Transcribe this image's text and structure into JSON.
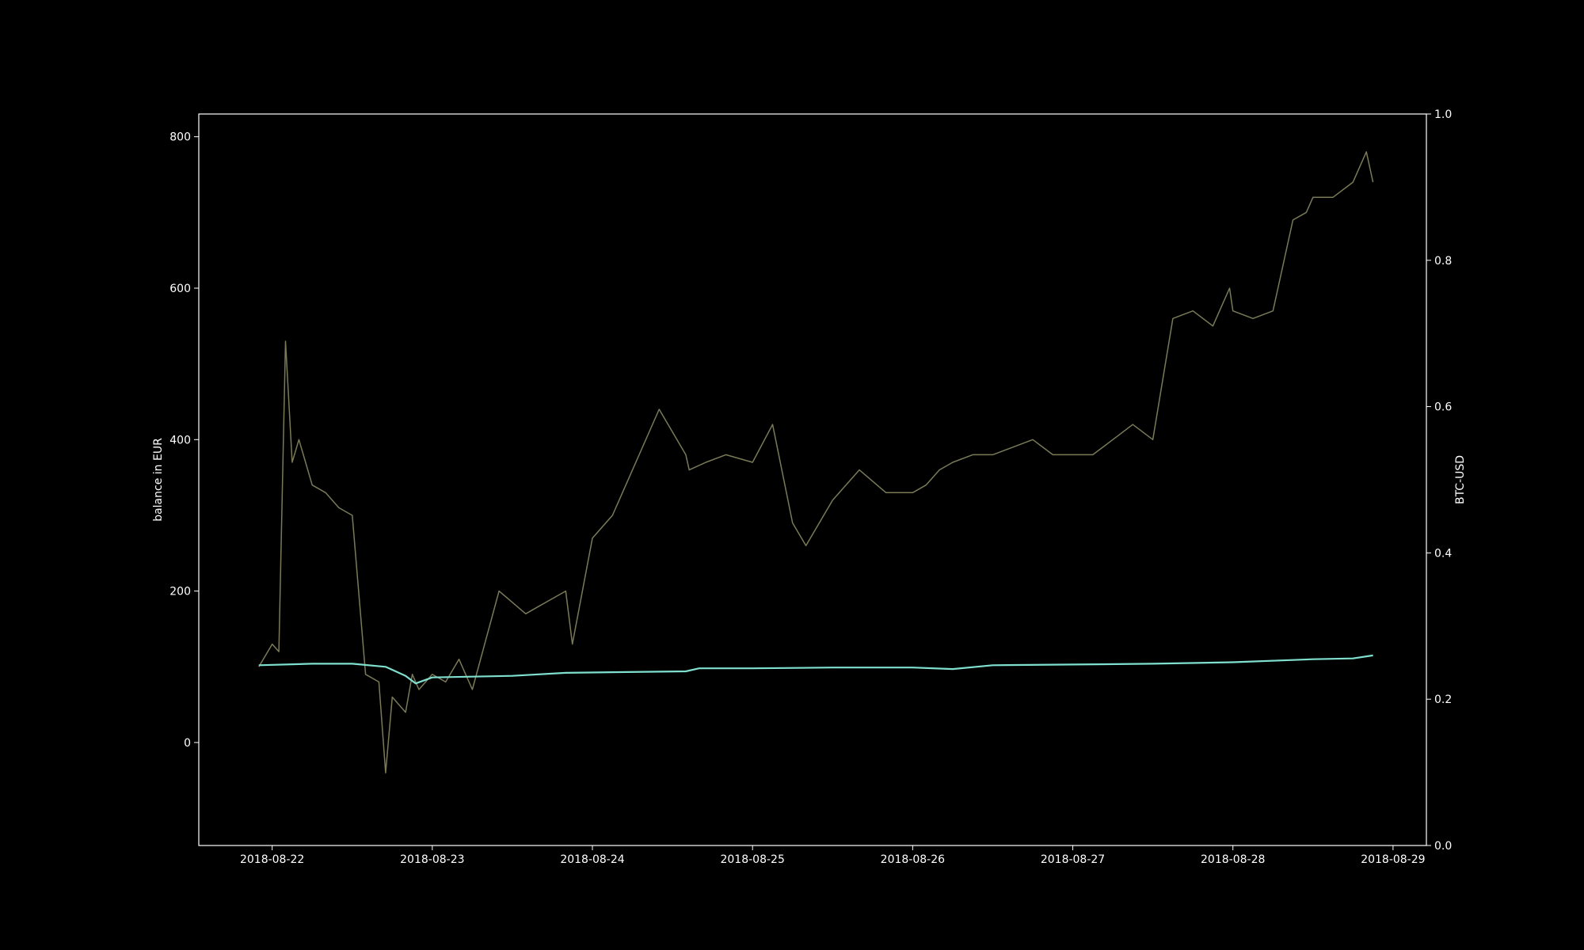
{
  "chart_data": {
    "type": "line",
    "title": "",
    "xlabel": "",
    "ylabel": "balance in EUR",
    "y2label": "BTC-USD",
    "xlim": [
      "2018-08-21 13:00",
      "2018-08-29 05:00"
    ],
    "ylim": [
      -136,
      830
    ],
    "y2lim": [
      0.0,
      1.0
    ],
    "x_ticks": [
      "2018-08-22",
      "2018-08-23",
      "2018-08-24",
      "2018-08-25",
      "2018-08-26",
      "2018-08-27",
      "2018-08-28",
      "2018-08-29"
    ],
    "y_ticks": [
      0,
      200,
      400,
      600,
      800
    ],
    "y2_ticks": [
      "0.0",
      "0.2",
      "0.4",
      "0.6",
      "0.8",
      "1.0"
    ],
    "grid": false,
    "legend": "none",
    "background": "#000000",
    "series": [
      {
        "axis": "left",
        "color": "#7a7a58",
        "x": [
          "2018-08-21 22:00",
          "2018-08-22 00:00",
          "2018-08-22 01:00",
          "2018-08-22 02:00",
          "2018-08-22 03:00",
          "2018-08-22 04:00",
          "2018-08-22 06:00",
          "2018-08-22 08:00",
          "2018-08-22 10:00",
          "2018-08-22 12:00",
          "2018-08-22 14:00",
          "2018-08-22 16:00",
          "2018-08-22 17:00",
          "2018-08-22 18:00",
          "2018-08-22 20:00",
          "2018-08-22 21:00",
          "2018-08-22 22:00",
          "2018-08-23 00:00",
          "2018-08-23 02:00",
          "2018-08-23 04:00",
          "2018-08-23 06:00",
          "2018-08-23 10:00",
          "2018-08-23 14:00",
          "2018-08-23 16:00",
          "2018-08-23 20:00",
          "2018-08-23 21:00",
          "2018-08-24 00:00",
          "2018-08-24 03:00",
          "2018-08-24 06:00",
          "2018-08-24 10:00",
          "2018-08-24 14:00",
          "2018-08-24 14:30",
          "2018-08-24 17:00",
          "2018-08-24 20:00",
          "2018-08-25 00:00",
          "2018-08-25 03:00",
          "2018-08-25 06:00",
          "2018-08-25 08:00",
          "2018-08-25 12:00",
          "2018-08-25 16:00",
          "2018-08-25 20:00",
          "2018-08-26 00:00",
          "2018-08-26 02:00",
          "2018-08-26 04:00",
          "2018-08-26 06:00",
          "2018-08-26 09:00",
          "2018-08-26 12:00",
          "2018-08-26 15:00",
          "2018-08-26 18:00",
          "2018-08-26 21:00",
          "2018-08-27 00:00",
          "2018-08-27 03:00",
          "2018-08-27 06:00",
          "2018-08-27 09:00",
          "2018-08-27 12:00",
          "2018-08-27 15:00",
          "2018-08-27 18:00",
          "2018-08-27 21:00",
          "2018-08-27 23:30",
          "2018-08-28 00:00",
          "2018-08-28 03:00",
          "2018-08-28 06:00",
          "2018-08-28 09:00",
          "2018-08-28 11:00",
          "2018-08-28 12:00",
          "2018-08-28 15:00",
          "2018-08-28 18:00",
          "2018-08-28 20:00",
          "2018-08-28 21:00"
        ],
        "values": [
          100,
          130,
          120,
          530,
          370,
          400,
          340,
          330,
          310,
          300,
          90,
          80,
          -40,
          60,
          40,
          90,
          70,
          90,
          80,
          110,
          70,
          200,
          170,
          180,
          200,
          130,
          270,
          300,
          360,
          440,
          380,
          360,
          370,
          380,
          370,
          420,
          290,
          260,
          320,
          360,
          330,
          330,
          340,
          360,
          370,
          380,
          380,
          390,
          400,
          380,
          380,
          380,
          400,
          420,
          400,
          560,
          570,
          550,
          600,
          570,
          560,
          570,
          690,
          700,
          720,
          720,
          740,
          780,
          740
        ]
      },
      {
        "axis": "left",
        "color": "#7fe0cf",
        "x": [
          "2018-08-21 22:00",
          "2018-08-22 06:00",
          "2018-08-22 12:00",
          "2018-08-22 17:00",
          "2018-08-22 20:00",
          "2018-08-22 21:30",
          "2018-08-23 00:00",
          "2018-08-23 06:00",
          "2018-08-23 12:00",
          "2018-08-23 20:00",
          "2018-08-24 04:00",
          "2018-08-24 14:00",
          "2018-08-24 16:00",
          "2018-08-25 00:00",
          "2018-08-25 12:00",
          "2018-08-26 00:00",
          "2018-08-26 06:00",
          "2018-08-26 12:00",
          "2018-08-27 00:00",
          "2018-08-27 12:00",
          "2018-08-28 00:00",
          "2018-08-28 12:00",
          "2018-08-28 18:00",
          "2018-08-28 21:00"
        ],
        "values": [
          102,
          104,
          104,
          100,
          88,
          78,
          86,
          87,
          88,
          92,
          93,
          94,
          98,
          98,
          99,
          99,
          97,
          102,
          103,
          104,
          106,
          110,
          111,
          115
        ]
      }
    ]
  }
}
